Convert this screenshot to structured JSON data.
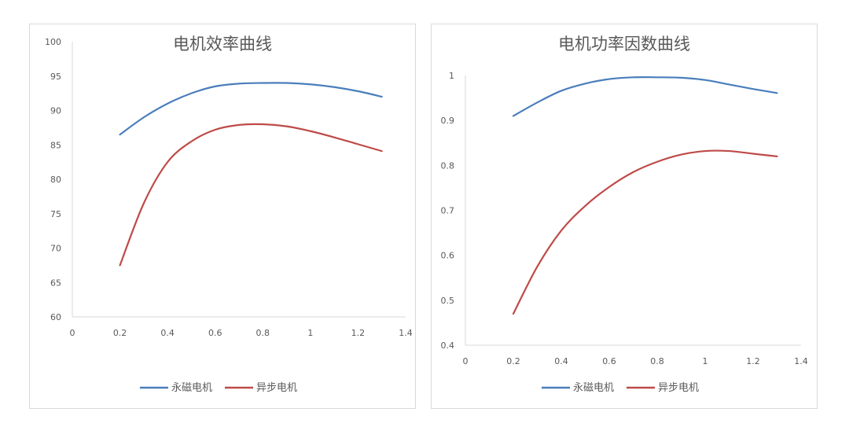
{
  "chart_data": [
    {
      "type": "line",
      "title": "电机效率曲线",
      "xlabel": "",
      "ylabel": "",
      "xlim": [
        0,
        1.4
      ],
      "ylim": [
        60,
        100
      ],
      "xticks": [
        "0",
        "0.2",
        "0.4",
        "0.6",
        "0.8",
        "1",
        "1.2",
        "1.4"
      ],
      "yticks": [
        "60",
        "65",
        "70",
        "75",
        "80",
        "85",
        "90",
        "95",
        "100"
      ],
      "grid": false,
      "legend_position": "bottom",
      "series": [
        {
          "name": "永磁电机",
          "color": "#4a7ebb",
          "x": [
            0.2,
            0.3,
            0.4,
            0.5,
            0.6,
            0.7,
            0.8,
            0.9,
            1.0,
            1.1,
            1.2,
            1.3
          ],
          "y": [
            86.5,
            89.0,
            91.0,
            92.5,
            93.5,
            93.9,
            94.0,
            94.0,
            93.8,
            93.4,
            92.8,
            92.0
          ]
        },
        {
          "name": "异步电机",
          "color": "#be4b48",
          "x": [
            0.2,
            0.3,
            0.4,
            0.5,
            0.6,
            0.7,
            0.8,
            0.9,
            1.0,
            1.1,
            1.2,
            1.3
          ],
          "y": [
            67.5,
            76.5,
            82.5,
            85.5,
            87.2,
            87.9,
            88.0,
            87.7,
            87.0,
            86.1,
            85.1,
            84.1
          ]
        }
      ]
    },
    {
      "type": "line",
      "title": "电机功率因数曲线",
      "xlabel": "",
      "ylabel": "",
      "xlim": [
        0,
        1.4
      ],
      "ylim": [
        0.4,
        1.0
      ],
      "xticks": [
        "0",
        "0.2",
        "0.4",
        "0.6",
        "0.8",
        "1",
        "1.2",
        "1.4"
      ],
      "yticks": [
        "0.4",
        "0.5",
        "0.6",
        "0.7",
        "0.8",
        "0.9",
        "1"
      ],
      "grid": false,
      "legend_position": "bottom",
      "series": [
        {
          "name": "永磁电机",
          "color": "#4a7ebb",
          "x": [
            0.2,
            0.3,
            0.4,
            0.5,
            0.6,
            0.7,
            0.8,
            0.9,
            1.0,
            1.1,
            1.2,
            1.3
          ],
          "y": [
            0.91,
            0.94,
            0.966,
            0.982,
            0.992,
            0.996,
            0.996,
            0.995,
            0.99,
            0.98,
            0.97,
            0.961
          ]
        },
        {
          "name": "异步电机",
          "color": "#be4b48",
          "x": [
            0.2,
            0.3,
            0.4,
            0.5,
            0.6,
            0.7,
            0.8,
            0.9,
            1.0,
            1.1,
            1.2,
            1.3
          ],
          "y": [
            0.47,
            0.575,
            0.655,
            0.71,
            0.752,
            0.785,
            0.808,
            0.824,
            0.832,
            0.832,
            0.826,
            0.82
          ]
        }
      ]
    }
  ]
}
